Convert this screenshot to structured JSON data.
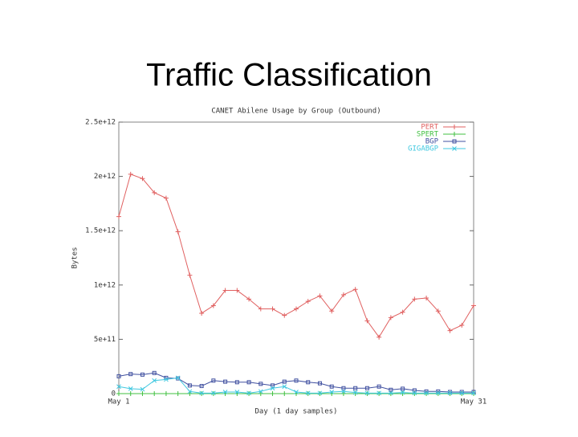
{
  "slide_title": "Traffic Classification",
  "chart_data": {
    "type": "line",
    "title": "CANET Abilene Usage by Group (Outbound)",
    "xlabel": "Day (1 day samples)",
    "ylabel": "Bytes",
    "x": [
      1,
      2,
      3,
      4,
      5,
      6,
      7,
      8,
      9,
      10,
      11,
      12,
      13,
      14,
      15,
      16,
      17,
      18,
      19,
      20,
      21,
      22,
      23,
      24,
      25,
      26,
      27,
      28,
      29,
      30,
      31
    ],
    "xlim": [
      1,
      31
    ],
    "xticks": [
      {
        "value": 1,
        "label": "May 1"
      },
      {
        "value": 31,
        "label": "May 31"
      }
    ],
    "ylim": [
      0,
      2500000000000.0
    ],
    "yticks": [
      {
        "value": 0,
        "label": "0"
      },
      {
        "value": 500000000000.0,
        "label": "5e+11"
      },
      {
        "value": 1000000000000.0,
        "label": "1e+12"
      },
      {
        "value": 1500000000000.0,
        "label": "1.5e+12"
      },
      {
        "value": 2000000000000.0,
        "label": "2e+12"
      },
      {
        "value": 2500000000000.0,
        "label": "2.5e+12"
      }
    ],
    "legend": "upper right",
    "series": [
      {
        "name": "PERT",
        "color": "#e06060",
        "marker": "plus",
        "values": [
          1630000000000.0,
          2020000000000.0,
          1980000000000.0,
          1850000000000.0,
          1800000000000.0,
          1490000000000.0,
          1090000000000.0,
          740000000000.0,
          810000000000.0,
          950000000000.0,
          950000000000.0,
          870000000000.0,
          780000000000.0,
          780000000000.0,
          720000000000.0,
          780000000000.0,
          850000000000.0,
          900000000000.0,
          760000000000.0,
          910000000000.0,
          960000000000.0,
          670000000000.0,
          520000000000.0,
          700000000000.0,
          750000000000.0,
          870000000000.0,
          880000000000.0,
          760000000000.0,
          580000000000.0,
          630000000000.0,
          810000000000.0
        ]
      },
      {
        "name": "SPERT",
        "color": "#40c040",
        "marker": "plus",
        "values": [
          0,
          0,
          0,
          0,
          0,
          0,
          0,
          0,
          0,
          0,
          0,
          0,
          0,
          0,
          0,
          0,
          0,
          0,
          0,
          0,
          0,
          0,
          0,
          0,
          0,
          0,
          0,
          0,
          0,
          0,
          0
        ]
      },
      {
        "name": "BGP",
        "color": "#4050a0",
        "marker": "square",
        "values": [
          160000000000.0,
          180000000000.0,
          175000000000.0,
          190000000000.0,
          145000000000.0,
          140000000000.0,
          75000000000.0,
          70000000000.0,
          120000000000.0,
          110000000000.0,
          105000000000.0,
          105000000000.0,
          90000000000.0,
          75000000000.0,
          110000000000.0,
          120000000000.0,
          105000000000.0,
          95000000000.0,
          65000000000.0,
          50000000000.0,
          50000000000.0,
          50000000000.0,
          65000000000.0,
          35000000000.0,
          45000000000.0,
          30000000000.0,
          20000000000.0,
          20000000000.0,
          15000000000.0,
          15000000000.0,
          15000000000.0
        ]
      },
      {
        "name": "GIGABGP",
        "color": "#40c8e0",
        "marker": "x",
        "values": [
          65000000000.0,
          45000000000.0,
          40000000000.0,
          120000000000.0,
          130000000000.0,
          145000000000.0,
          20000000000.0,
          5000000000.0,
          5000000000.0,
          15000000000.0,
          15000000000.0,
          5000000000.0,
          20000000000.0,
          50000000000.0,
          65000000000.0,
          15000000000.0,
          5000000000.0,
          5000000000.0,
          15000000000.0,
          20000000000.0,
          10000000000.0,
          5000000000.0,
          5000000000.0,
          5000000000.0,
          10000000000.0,
          5000000000.0,
          5000000000.0,
          5000000000.0,
          5000000000.0,
          5000000000.0,
          5000000000.0
        ]
      }
    ]
  }
}
